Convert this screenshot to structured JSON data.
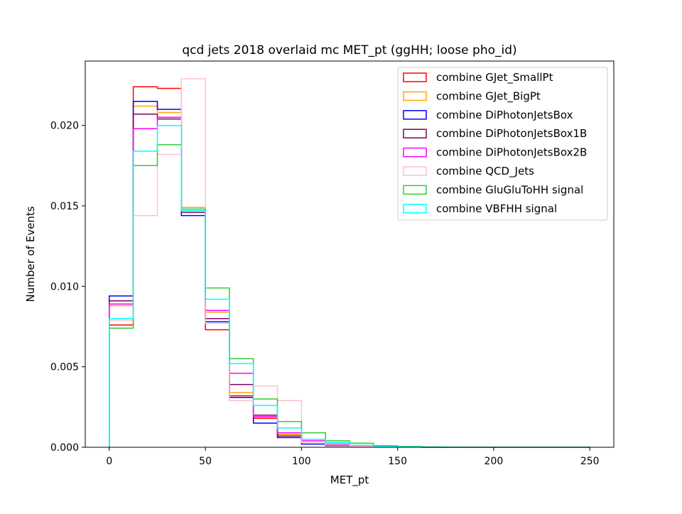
{
  "chart_data": {
    "type": "step-histogram",
    "title": "qcd jets 2018 overlaid mc MET_pt (ggHH; loose pho_id)",
    "xlabel": "MET_pt",
    "ylabel": "Number of Events",
    "xlim": [
      -12.5,
      262.5
    ],
    "ylim": [
      0,
      0.024
    ],
    "xticks": [
      0,
      50,
      100,
      150,
      200,
      250
    ],
    "xtick_labels": [
      "0",
      "50",
      "100",
      "150",
      "200",
      "250"
    ],
    "yticks": [
      0,
      0.005,
      0.01,
      0.015,
      0.02
    ],
    "ytick_labels": [
      "0.000",
      "0.005",
      "0.010",
      "0.015",
      "0.020"
    ],
    "grid": false,
    "legend_position": "top-right",
    "bin_edges": [
      0,
      12.5,
      25,
      37.5,
      50,
      62.5,
      75,
      87.5,
      100,
      112.5,
      125,
      137.5,
      150,
      162.5,
      175,
      187.5,
      200,
      212.5,
      225,
      237.5,
      250
    ],
    "series": [
      {
        "name": "combine GJet_SmallPt",
        "color": "#ff0000",
        "values": [
          0.0076,
          0.0224,
          0.0223,
          0.0147,
          0.0073,
          0.0032,
          0.0018,
          0.0008,
          0.0003,
          0.00012,
          5e-05,
          2e-05,
          1e-05,
          0,
          0,
          0,
          0,
          0,
          0,
          0
        ]
      },
      {
        "name": "combine GJet_BigPt",
        "color": "#ffa500",
        "values": [
          0.0088,
          0.0212,
          0.0208,
          0.0149,
          0.0084,
          0.0034,
          0.0019,
          0.0008,
          0.0003,
          0.0001,
          4e-05,
          2e-05,
          1e-05,
          0,
          0,
          0,
          0,
          0,
          0,
          0
        ]
      },
      {
        "name": "combine DiPhotonJetsBox",
        "color": "#0000ff",
        "values": [
          0.0094,
          0.0215,
          0.021,
          0.0144,
          0.0078,
          0.0031,
          0.0015,
          0.0006,
          0.0002,
          0.0001,
          4e-05,
          2e-05,
          1e-05,
          0,
          0,
          0,
          0,
          0,
          0,
          0
        ]
      },
      {
        "name": "combine DiPhotonJetsBox1B",
        "color": "#800060",
        "values": [
          0.0091,
          0.0207,
          0.0204,
          0.0146,
          0.008,
          0.0039,
          0.002,
          0.0007,
          0.0003,
          0.0001,
          4e-05,
          2e-05,
          1e-05,
          0,
          0,
          0,
          0,
          0,
          0,
          0
        ]
      },
      {
        "name": "combine DiPhotonJetsBox2B",
        "color": "#ff00ff",
        "values": [
          0.0089,
          0.0198,
          0.0205,
          0.0147,
          0.0085,
          0.0046,
          0.0019,
          0.0009,
          0.0004,
          0.0002,
          5e-05,
          2e-05,
          1e-05,
          0,
          0,
          0,
          0,
          0,
          0,
          0
        ]
      },
      {
        "name": "combine QCD_Jets",
        "color": "#ffc0cb",
        "values": [
          0.0079,
          0.0144,
          0.0182,
          0.0229,
          0.0077,
          0.0029,
          0.0038,
          0.0029,
          0.0003,
          0.00015,
          5e-05,
          2e-05,
          1e-05,
          0,
          0,
          0,
          0,
          0,
          0,
          0
        ]
      },
      {
        "name": "combine GluGluToHH signal",
        "color": "#33cc33",
        "values": [
          0.0074,
          0.0175,
          0.0188,
          0.0148,
          0.0099,
          0.0055,
          0.003,
          0.0016,
          0.0009,
          0.0004,
          0.00025,
          0.0001,
          5e-05,
          2e-05,
          1e-05,
          0,
          0,
          0,
          0,
          0
        ]
      },
      {
        "name": "combine VBFHH signal",
        "color": "#00ffff",
        "values": [
          0.008,
          0.0184,
          0.02,
          0.0147,
          0.0092,
          0.0052,
          0.0026,
          0.0012,
          0.0005,
          0.0003,
          0.00012,
          5e-05,
          2e-05,
          1e-05,
          0,
          0,
          0,
          0,
          0,
          0
        ]
      }
    ]
  }
}
